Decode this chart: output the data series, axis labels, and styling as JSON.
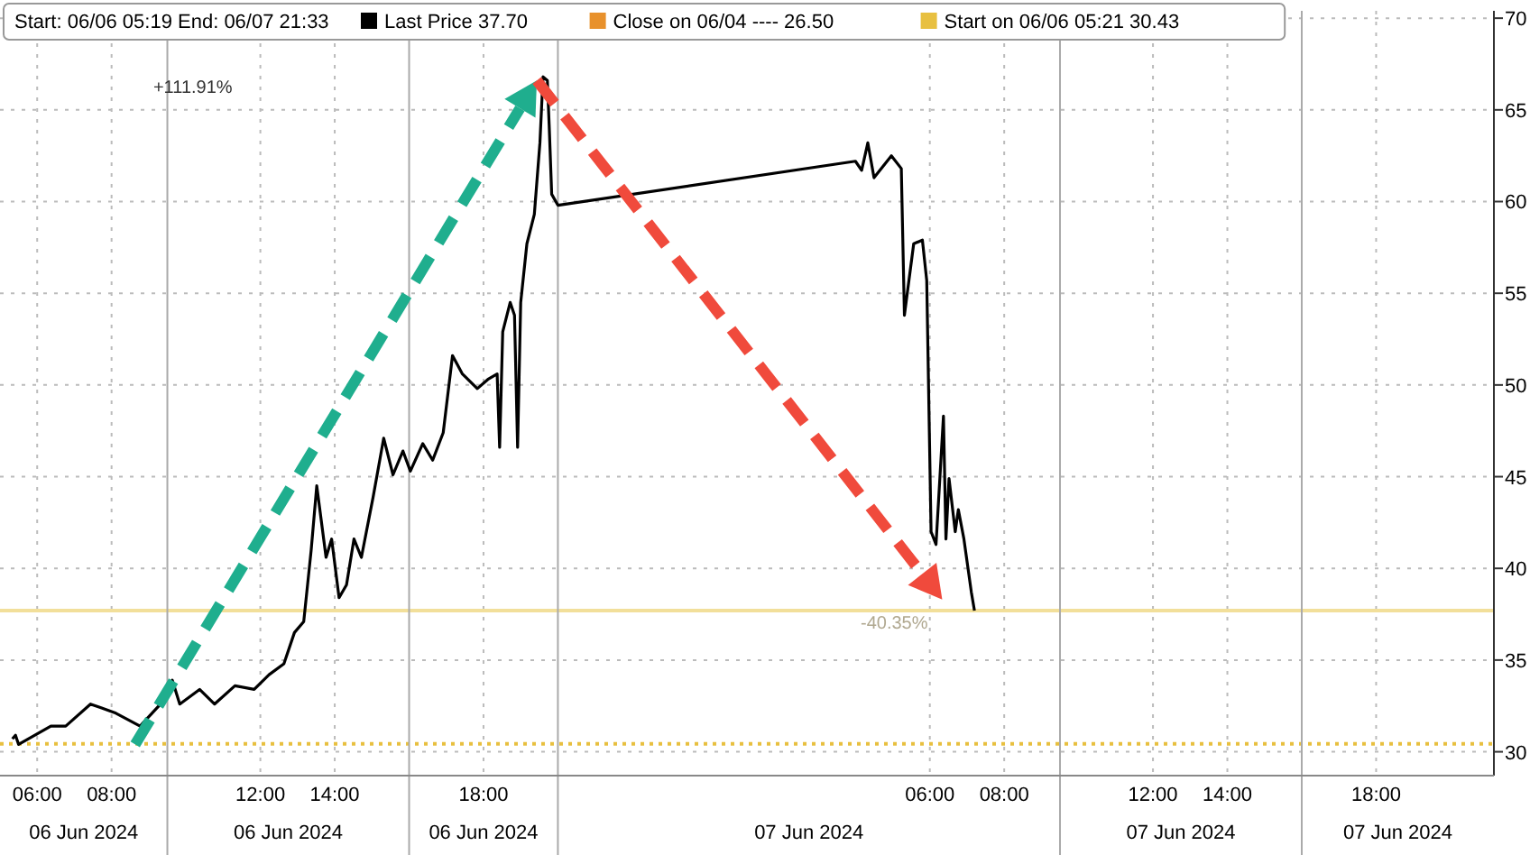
{
  "chart_data": {
    "type": "line",
    "subtitle": "Start: 06/06 05:19 End: 06/07 21:33",
    "legend": "top",
    "grid": true,
    "xlim": [
      "2024-06-06T05:00",
      "2024-06-07T21:10"
    ],
    "ylim": [
      28.7,
      70.4
    ],
    "yticks": [
      30,
      35,
      40,
      45,
      50,
      55,
      60,
      65,
      70
    ],
    "xticks": [
      {
        "value": "2024-06-06T06:00",
        "label": "06:00"
      },
      {
        "value": "2024-06-06T08:00",
        "label": "08:00"
      },
      {
        "value": "2024-06-06T12:00",
        "label": "12:00"
      },
      {
        "value": "2024-06-06T14:00",
        "label": "14:00"
      },
      {
        "value": "2024-06-06T18:00",
        "label": "18:00"
      },
      {
        "value": "2024-06-07T06:00",
        "label": "06:00"
      },
      {
        "value": "2024-06-07T08:00",
        "label": "08:00"
      },
      {
        "value": "2024-06-07T12:00",
        "label": "12:00"
      },
      {
        "value": "2024-06-07T14:00",
        "label": "14:00"
      },
      {
        "value": "2024-06-07T18:00",
        "label": "18:00"
      }
    ],
    "series": [
      {
        "name": "Last Price 37.70",
        "color": "#000000",
        "x": [
          "2024-06-06T05:20",
          "2024-06-06T05:25",
          "2024-06-06T05:30",
          "2024-06-06T06:22",
          "2024-06-06T06:46",
          "2024-06-06T07:26",
          "2024-06-06T07:43",
          "2024-06-06T08:07",
          "2024-06-06T08:46",
          "2024-06-06T09:19",
          "2024-06-06T09:38",
          "2024-06-06T09:50",
          "2024-06-06T10:22",
          "2024-06-06T10:46",
          "2024-06-06T11:19",
          "2024-06-06T11:50",
          "2024-06-06T12:14",
          "2024-06-06T12:38",
          "2024-06-06T12:55",
          "2024-06-06T13:10",
          "2024-06-06T13:22",
          "2024-06-06T13:31",
          "2024-06-06T13:46",
          "2024-06-06T13:55",
          "2024-06-06T14:07",
          "2024-06-06T14:19",
          "2024-06-06T14:31",
          "2024-06-06T14:43",
          "2024-06-06T15:02",
          "2024-06-06T15:19",
          "2024-06-06T15:34",
          "2024-06-06T15:50",
          "2024-06-06T16:02",
          "2024-06-06T16:22",
          "2024-06-06T16:38",
          "2024-06-06T16:55",
          "2024-06-06T17:10",
          "2024-06-06T17:26",
          "2024-06-06T17:50",
          "2024-06-06T18:07",
          "2024-06-06T18:22",
          "2024-06-06T18:26",
          "2024-06-06T18:31",
          "2024-06-06T18:43",
          "2024-06-06T18:50",
          "2024-06-06T18:55",
          "2024-06-06T19:00",
          "2024-06-06T19:10",
          "2024-06-06T19:22",
          "2024-06-06T19:31",
          "2024-06-06T19:36",
          "2024-06-06T19:43",
          "2024-06-06T19:46",
          "2024-06-06T19:50",
          "2024-06-06T20:00",
          "2024-06-07T04:00",
          "2024-06-07T04:10",
          "2024-06-07T04:20",
          "2024-06-07T04:30",
          "2024-06-07T04:58",
          "2024-06-07T05:14",
          "2024-06-07T05:19",
          "2024-06-07T05:34",
          "2024-06-07T05:48",
          "2024-06-07T05:55",
          "2024-06-07T06:02",
          "2024-06-07T06:10",
          "2024-06-07T06:22",
          "2024-06-07T06:26",
          "2024-06-07T06:31",
          "2024-06-07T06:41",
          "2024-06-07T06:46",
          "2024-06-07T06:55",
          "2024-06-07T07:07",
          "2024-06-07T07:12"
        ],
        "values": [
          30.7,
          30.9,
          30.4,
          31.4,
          31.4,
          32.6,
          32.4,
          32.1,
          31.4,
          32.6,
          33.9,
          32.6,
          33.4,
          32.6,
          33.6,
          33.4,
          34.2,
          34.8,
          36.5,
          37.1,
          41.0,
          44.5,
          40.6,
          41.6,
          38.4,
          39.1,
          41.6,
          40.6,
          43.9,
          47.1,
          45.1,
          46.4,
          45.3,
          46.8,
          45.9,
          47.4,
          51.6,
          50.6,
          49.8,
          50.3,
          50.6,
          46.6,
          52.9,
          54.5,
          53.8,
          46.6,
          54.5,
          57.7,
          59.3,
          63.2,
          66.8,
          66.6,
          64.1,
          60.4,
          59.8,
          62.2,
          61.7,
          63.2,
          61.3,
          62.5,
          61.8,
          53.8,
          57.7,
          57.9,
          55.7,
          42.0,
          41.3,
          48.3,
          41.6,
          44.9,
          42.0,
          43.2,
          41.6,
          38.7,
          37.7
        ]
      }
    ],
    "ref_lines": [
      {
        "axis": "y",
        "value": 30.43,
        "label": "Start on 06/06 05:21 30.43",
        "color": "#e8c040",
        "line_style": "dotted"
      },
      {
        "axis": "y",
        "value": 37.7,
        "label": null,
        "color": "#f2df9a",
        "line_style": "solid"
      },
      {
        "axis": "x",
        "value": "2024-06-06T09:30",
        "label": null,
        "color": "#aaaaaa",
        "line_style": "solid"
      },
      {
        "axis": "x",
        "value": "2024-06-06T16:00",
        "label": null,
        "color": "#aaaaaa",
        "line_style": "solid"
      },
      {
        "axis": "x",
        "value": "2024-06-06T20:00",
        "label": null,
        "color": "#aaaaaa",
        "line_style": "solid"
      },
      {
        "axis": "x",
        "value": "2024-06-07T09:30",
        "label": null,
        "color": "#aaaaaa",
        "line_style": "solid"
      },
      {
        "axis": "x",
        "value": "2024-06-07T16:00",
        "label": null,
        "color": "#aaaaaa",
        "line_style": "solid"
      }
    ],
    "annotations": [
      "Close on 06/04 ---- 26.50",
      {
        "text": "+111.91%",
        "x": "2024-06-06T09:19",
        "y": 66.9
      },
      {
        "text": "-40.35%",
        "x": "2024-06-07T04:20",
        "y": 37.7
      },
      "06 Jun 2024",
      "06 Jun 2024",
      "06 Jun 2024",
      "07 Jun 2024",
      "07 Jun 2024",
      "07 Jun 2024"
    ]
  }
}
